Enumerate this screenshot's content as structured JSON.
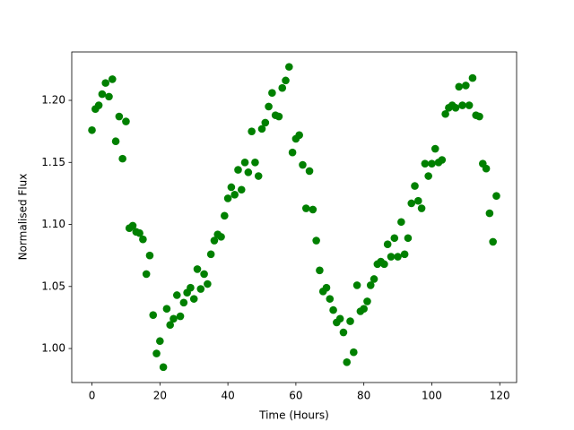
{
  "chart_data": {
    "type": "scatter",
    "xlabel": "Time (Hours)",
    "ylabel": "Normalised Flux",
    "xlim": [
      -5.95,
      124.95
    ],
    "ylim": [
      0.9726,
      1.239
    ],
    "xticks": [
      0,
      20,
      40,
      60,
      80,
      100,
      120
    ],
    "yticks": [
      {
        "value": 1.0,
        "label": "1.00"
      },
      1.05,
      {
        "value": 1.1,
        "label": "1.10"
      },
      1.15,
      {
        "value": 1.2,
        "label": "1.20"
      }
    ],
    "grid": false,
    "series": [
      {
        "color": "#008000",
        "x": [
          0,
          1,
          2,
          3,
          4,
          5,
          6,
          7,
          8,
          9,
          10,
          11,
          12,
          13,
          14,
          15,
          16,
          17,
          18,
          19,
          20,
          21,
          22,
          23,
          24,
          25,
          26,
          27,
          28,
          29,
          30,
          31,
          32,
          33,
          34,
          35,
          36,
          37,
          38,
          39,
          40,
          41,
          42,
          43,
          44,
          45,
          46,
          47,
          48,
          49,
          50,
          51,
          52,
          53,
          54,
          55,
          56,
          57,
          58,
          59,
          60,
          61,
          62,
          63,
          64,
          65,
          66,
          67,
          68,
          69,
          70,
          71,
          72,
          73,
          74,
          75,
          76,
          77,
          78,
          79,
          80,
          81,
          82,
          83,
          84,
          85,
          86,
          87,
          88,
          89,
          90,
          91,
          92,
          93,
          94,
          95,
          96,
          97,
          98,
          99,
          100,
          101,
          102,
          103,
          104,
          105,
          106,
          107,
          108,
          109,
          110,
          111,
          112,
          113,
          114,
          115,
          116,
          117,
          118,
          119
        ],
        "values": [
          1.176,
          1.193,
          1.196,
          1.205,
          1.214,
          1.203,
          1.217,
          1.167,
          1.187,
          1.153,
          1.183,
          1.097,
          1.099,
          1.094,
          1.093,
          1.088,
          1.06,
          1.075,
          1.027,
          0.996,
          1.006,
          0.985,
          1.032,
          1.019,
          1.024,
          1.043,
          1.026,
          1.037,
          1.045,
          1.049,
          1.04,
          1.064,
          1.048,
          1.06,
          1.052,
          1.076,
          1.087,
          1.092,
          1.09,
          1.107,
          1.121,
          1.13,
          1.124,
          1.144,
          1.128,
          1.15,
          1.142,
          1.175,
          1.15,
          1.139,
          1.177,
          1.182,
          1.195,
          1.206,
          1.188,
          1.187,
          1.21,
          1.216,
          1.227,
          1.158,
          1.169,
          1.172,
          1.148,
          1.113,
          1.143,
          1.112,
          1.087,
          1.063,
          1.046,
          1.049,
          1.04,
          1.031,
          1.021,
          1.024,
          1.013,
          0.989,
          1.022,
          0.997,
          1.051,
          1.03,
          1.032,
          1.038,
          1.051,
          1.056,
          1.068,
          1.07,
          1.068,
          1.084,
          1.074,
          1.089,
          1.074,
          1.102,
          1.076,
          1.089,
          1.117,
          1.131,
          1.119,
          1.113,
          1.149,
          1.139,
          1.149,
          1.161,
          1.15,
          1.152,
          1.189,
          1.194,
          1.196,
          1.194,
          1.211,
          1.196,
          1.212,
          1.196,
          1.218,
          1.188,
          1.187,
          1.149,
          1.145,
          1.109,
          1.086,
          1.123
        ]
      }
    ]
  }
}
